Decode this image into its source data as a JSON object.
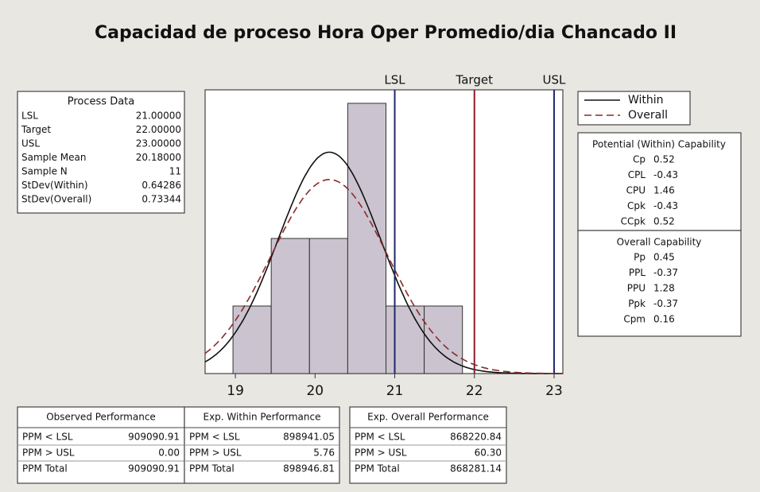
{
  "chart_data": {
    "type": "histogram",
    "title": "Capacidad de proceso Hora Oper Promedio/dia Chancado II",
    "bins": [
      18.97,
      19.45,
      19.93,
      20.41,
      20.89,
      21.37,
      21.85
    ],
    "values": [
      1,
      2,
      2,
      4,
      1,
      1
    ],
    "color": "#cbc3cf",
    "xlim": [
      18.62,
      23.11
    ],
    "xticks": [
      19,
      20,
      21,
      22,
      23
    ],
    "ylim": [
      0,
      4.2
    ],
    "spec_lines": [
      {
        "name": "LSL",
        "color": "#1f2a6b"
      },
      {
        "name": "Target",
        "color": "#8b1a2a"
      },
      {
        "name": "USL",
        "color": "#1f2a6b"
      }
    ],
    "series": [
      {
        "name": "Within",
        "color": "#111111",
        "dash": false
      },
      {
        "name": "Overall",
        "color": "#8b2a2a",
        "dash": true
      }
    ],
    "process_data": {
      "title": "Process Data",
      "rows": [
        {
          "label": "LSL",
          "value": {
            "value": 21,
            "label": "21.00000"
          }
        },
        {
          "label": "Target",
          "value": {
            "value": 22,
            "label": "22.00000"
          }
        },
        {
          "label": "USL",
          "value": {
            "value": 23,
            "label": "23.00000"
          }
        },
        {
          "label": "Sample Mean",
          "value": {
            "value": 20.18,
            "label": "20.18000"
          }
        },
        {
          "label": "Sample N",
          "value": 11
        },
        {
          "label": "StDev(Within)",
          "value": 0.64286
        },
        {
          "label": "StDev(Overall)",
          "value": 0.73344
        }
      ]
    },
    "potential_capability": {
      "title": "Potential (Within) Capability",
      "rows": [
        [
          "Cp",
          "0.52"
        ],
        [
          "CPL",
          "-0.43"
        ],
        [
          "CPU",
          "1.46"
        ],
        [
          "Cpk",
          "-0.43"
        ],
        [
          "CCpk",
          "0.52"
        ]
      ]
    },
    "overall_capability": {
      "title": "Overall Capability",
      "rows": [
        [
          "Pp",
          "0.45"
        ],
        [
          "PPL",
          "-0.37"
        ],
        [
          "PPU",
          "1.28"
        ],
        [
          "Ppk",
          "-0.37"
        ],
        [
          "Cpm",
          "0.16"
        ]
      ]
    },
    "performance": [
      {
        "title": "Observed Performance",
        "rows": [
          [
            "PPM < LSL",
            "909090.91"
          ],
          [
            "PPM > USL",
            "0.00"
          ],
          [
            "PPM Total",
            "909090.91"
          ]
        ]
      },
      {
        "title": "Exp. Within Performance",
        "rows": [
          [
            "PPM < LSL",
            "898941.05"
          ],
          [
            "PPM > USL",
            "5.76"
          ],
          [
            "PPM Total",
            "898946.81"
          ]
        ]
      },
      {
        "title": "Exp. Overall Performance",
        "rows": [
          [
            "PPM < LSL",
            "868220.84"
          ],
          [
            "PPM > USL",
            "60.30"
          ],
          [
            "PPM Total",
            "868281.14"
          ]
        ]
      }
    ]
  }
}
